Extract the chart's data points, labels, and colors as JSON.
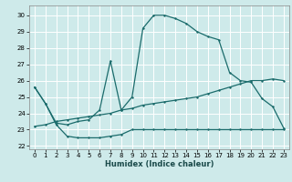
{
  "xlabel": "Humidex (Indice chaleur)",
  "bg_color": "#ceeaea",
  "grid_color": "#ffffff",
  "line_color": "#1a6b6b",
  "xlim": [
    -0.5,
    23.5
  ],
  "ylim": [
    21.8,
    30.6
  ],
  "yticks": [
    22,
    23,
    24,
    25,
    26,
    27,
    28,
    29,
    30
  ],
  "xticks": [
    0,
    1,
    2,
    3,
    4,
    5,
    6,
    7,
    8,
    9,
    10,
    11,
    12,
    13,
    14,
    15,
    16,
    17,
    18,
    19,
    20,
    21,
    22,
    23
  ],
  "line1_x": [
    0,
    1,
    2,
    3,
    4,
    5,
    6,
    7,
    8,
    9,
    10,
    11,
    12,
    13,
    14,
    15,
    16,
    17,
    18,
    19,
    20,
    21,
    22,
    23
  ],
  "line1_y": [
    25.6,
    24.6,
    23.3,
    22.6,
    22.5,
    22.5,
    22.5,
    22.6,
    22.7,
    23.0,
    23.0,
    23.0,
    23.0,
    23.0,
    23.0,
    23.0,
    23.0,
    23.0,
    23.0,
    23.0,
    23.0,
    23.0,
    23.0,
    23.0
  ],
  "line2_x": [
    0,
    1,
    2,
    3,
    4,
    5,
    6,
    7,
    8,
    9,
    10,
    11,
    12,
    13,
    14,
    15,
    16,
    17,
    18,
    19,
    20,
    21,
    22,
    23
  ],
  "line2_y": [
    23.2,
    23.3,
    23.5,
    23.6,
    23.7,
    23.8,
    23.9,
    24.0,
    24.2,
    24.3,
    24.5,
    24.6,
    24.7,
    24.8,
    24.9,
    25.0,
    25.2,
    25.4,
    25.6,
    25.8,
    26.0,
    26.0,
    26.1,
    26.0
  ],
  "line3_x": [
    0,
    1,
    2,
    3,
    4,
    5,
    6,
    7,
    8,
    9,
    10,
    11,
    12,
    13,
    14,
    15,
    16,
    17,
    18,
    19,
    20,
    21,
    22,
    23
  ],
  "line3_y": [
    25.6,
    24.6,
    23.4,
    23.3,
    23.5,
    23.6,
    24.2,
    27.2,
    24.2,
    25.0,
    29.2,
    30.0,
    30.0,
    29.8,
    29.5,
    29.0,
    28.7,
    28.5,
    26.5,
    26.0,
    25.9,
    24.9,
    24.4,
    23.1
  ]
}
